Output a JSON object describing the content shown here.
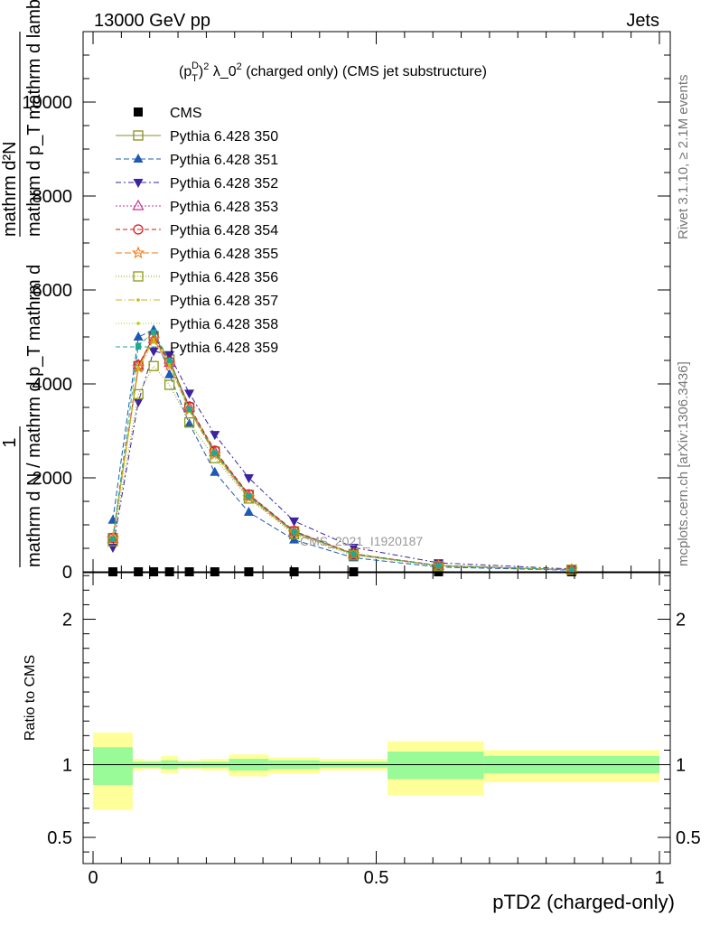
{
  "header": {
    "left": "13000 GeV pp",
    "right": "Jets"
  },
  "side_labels": {
    "rivet": "Rivet 3.1.10, ≥ 2.1M events",
    "mcplots": "mcplots.cern.ch [arXiv:1306.3436]"
  },
  "chart_data": [
    {
      "type": "line",
      "title_parts": {
        "p": "(p",
        "sup_d": "D",
        "sub_t": "T",
        "close": ")",
        "sup_2": "2",
        "lambda": " λ_0",
        "sup_2b": "2",
        "rest": " (charged only) (CMS jet substructure)"
      },
      "ylabel": {
        "frac_num": "1",
        "frac_den": "mathrm d N / mathrm d p_T mathrm d",
        "num": "mathrm d²N",
        "den": "mathrm d p_T mathrm d lambda"
      },
      "watermark": "CMS_2021_I1920187",
      "xlim": [
        0,
        1
      ],
      "ylim": [
        0,
        11500
      ],
      "yticks": [
        0,
        2000,
        4000,
        6000,
        8000,
        10000
      ],
      "ytick_labels": [
        "0",
        "2000",
        "4000",
        "6000",
        "8000",
        "10000"
      ],
      "x": [
        0.035,
        0.08,
        0.107,
        0.135,
        0.17,
        0.215,
        0.275,
        0.355,
        0.46,
        0.61,
        0.845
      ],
      "series": [
        {
          "name": "CMS",
          "color": "#000000",
          "marker": "square-filled",
          "dash": "",
          "values": [
            0,
            0,
            0,
            0,
            0,
            0,
            0,
            0,
            0,
            0,
            0
          ]
        },
        {
          "name": "Pythia 6.428 350",
          "color": "#8b8b2b",
          "marker": "square-open",
          "dash": "",
          "values": [
            720,
            4380,
            5020,
            4520,
            3500,
            2560,
            1640,
            860,
            380,
            130,
            45
          ]
        },
        {
          "name": "Pythia 6.428 351",
          "color": "#1c5ab4",
          "marker": "triangle-up-filled",
          "dash": "6,3",
          "values": [
            1100,
            5000,
            5150,
            4200,
            3150,
            2120,
            1270,
            680,
            300,
            100,
            35
          ]
        },
        {
          "name": "Pythia 6.428 352",
          "color": "#3c23a0",
          "marker": "triangle-down-filled",
          "dash": "6,3,2,3",
          "values": [
            520,
            3620,
            4700,
            4620,
            3800,
            2920,
            2000,
            1080,
            520,
            190,
            60
          ]
        },
        {
          "name": "Pythia 6.428 353",
          "color": "#c83296",
          "marker": "triangle-up-open",
          "dash": "2,2",
          "values": [
            700,
            4400,
            4950,
            4450,
            3500,
            2550,
            1620,
            860,
            380,
            135,
            45
          ]
        },
        {
          "name": "Pythia 6.428 354",
          "color": "#dc1414",
          "marker": "circle-open",
          "dash": "5,3",
          "values": [
            720,
            4400,
            5000,
            4480,
            3520,
            2580,
            1650,
            870,
            385,
            135,
            45
          ]
        },
        {
          "name": "Pythia 6.428 355",
          "color": "#f07814",
          "marker": "star-open",
          "dash": "7,3",
          "values": [
            710,
            4350,
            4950,
            4400,
            3450,
            2500,
            1580,
            830,
            370,
            130,
            42
          ]
        },
        {
          "name": "Pythia 6.428 356",
          "color": "#8c9a14",
          "marker": "square-open",
          "dash": "1,2",
          "values": [
            650,
            3780,
            4380,
            3980,
            3180,
            2420,
            1560,
            800,
            350,
            120,
            40
          ]
        },
        {
          "name": "Pythia 6.428 357",
          "color": "#d2b40a",
          "marker": "dot",
          "dash": "7,3,1,3",
          "values": [
            720,
            4350,
            4950,
            4450,
            3480,
            2540,
            1600,
            840,
            375,
            130,
            43
          ]
        },
        {
          "name": "Pythia 6.428 358",
          "color": "#b4c814",
          "marker": "dot",
          "dash": "1,2",
          "values": [
            700,
            4300,
            4900,
            4400,
            3420,
            2500,
            1580,
            830,
            370,
            128,
            42
          ]
        },
        {
          "name": "Pythia 6.428 359",
          "color": "#1eaa8c",
          "marker": "square-small",
          "dash": "5,3",
          "values": [
            690,
            4820,
            5100,
            4500,
            3460,
            2530,
            1610,
            850,
            375,
            130,
            43
          ]
        }
      ]
    },
    {
      "type": "area",
      "ylabel": "Ratio to CMS",
      "xlabel": "pTD2 (charged-only)",
      "xlim": [
        0,
        1
      ],
      "ylim": [
        0.32,
        2.32
      ],
      "yticks": [
        0.5,
        1,
        2
      ],
      "ytick_labels": [
        "0.5",
        "1",
        "2"
      ],
      "xticks": [
        0,
        0.5,
        1
      ],
      "xtick_labels": [
        "0",
        "0.5",
        "1"
      ],
      "bins": [
        {
          "x0": 0.0,
          "x1": 0.07,
          "inner": [
            0.86,
            1.12
          ],
          "outer": [
            0.69,
            1.22
          ]
        },
        {
          "x0": 0.07,
          "x1": 0.09,
          "inner": [
            0.98,
            1.02
          ],
          "outer": [
            0.96,
            1.04
          ]
        },
        {
          "x0": 0.09,
          "x1": 0.12,
          "inner": [
            0.98,
            1.02
          ],
          "outer": [
            0.97,
            1.03
          ]
        },
        {
          "x0": 0.12,
          "x1": 0.15,
          "inner": [
            0.97,
            1.03
          ],
          "outer": [
            0.94,
            1.06
          ]
        },
        {
          "x0": 0.15,
          "x1": 0.19,
          "inner": [
            0.98,
            1.02
          ],
          "outer": [
            0.97,
            1.03
          ]
        },
        {
          "x0": 0.19,
          "x1": 0.24,
          "inner": [
            0.98,
            1.02
          ],
          "outer": [
            0.96,
            1.04
          ]
        },
        {
          "x0": 0.24,
          "x1": 0.31,
          "inner": [
            0.96,
            1.04
          ],
          "outer": [
            0.92,
            1.07
          ]
        },
        {
          "x0": 0.31,
          "x1": 0.4,
          "inner": [
            0.97,
            1.03
          ],
          "outer": [
            0.94,
            1.05
          ]
        },
        {
          "x0": 0.4,
          "x1": 0.52,
          "inner": [
            0.98,
            1.02
          ],
          "outer": [
            0.96,
            1.04
          ]
        },
        {
          "x0": 0.52,
          "x1": 0.69,
          "inner": [
            0.9,
            1.09
          ],
          "outer": [
            0.79,
            1.16
          ]
        },
        {
          "x0": 0.69,
          "x1": 1.0,
          "inner": [
            0.94,
            1.06
          ],
          "outer": [
            0.88,
            1.1
          ]
        }
      ],
      "colors": {
        "inner": "#98fb98",
        "outer": "#ffff99",
        "line": "#000000"
      }
    }
  ]
}
